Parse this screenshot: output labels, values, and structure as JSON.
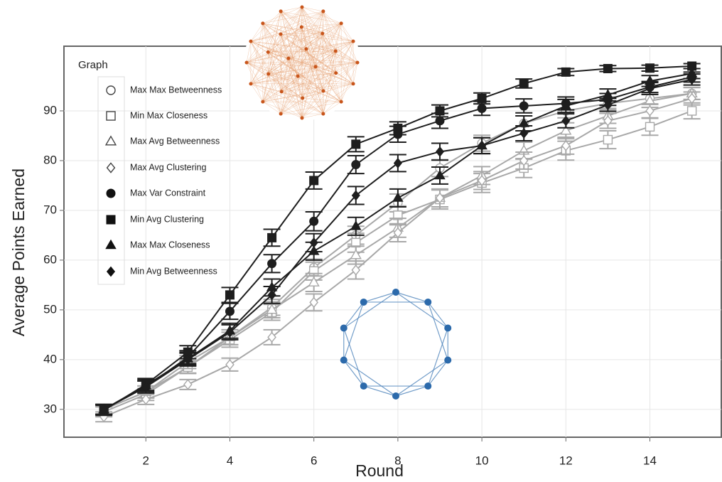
{
  "chart_data": {
    "type": "line",
    "x_label": "Round",
    "y_label": "Average Points Earned",
    "legend_title": "Graph",
    "legend_position": "upper left",
    "grid": true,
    "xlim": [
      0.05,
      15.7
    ],
    "ylim": [
      24.4,
      103
    ],
    "xticks": [
      2,
      4,
      6,
      8,
      10,
      12,
      14
    ],
    "yticks": [
      30,
      40,
      50,
      60,
      70,
      80,
      90
    ],
    "x": [
      1,
      2,
      3,
      4,
      5,
      6,
      7,
      8,
      9,
      10,
      11,
      12,
      13,
      14,
      15
    ],
    "series": [
      {
        "name": "Max Max Betweenness",
        "color": "#a8a8a8",
        "marker": "circle",
        "filled": false,
        "values": [
          30,
          33.5,
          38.5,
          44.5,
          50.5,
          58.5,
          65,
          71.5,
          78.5,
          83.5,
          87.5,
          90,
          91.5,
          92.5,
          93.5
        ],
        "errors": [
          1,
          1.2,
          1.2,
          1.5,
          1.6,
          1.7,
          1.8,
          1.8,
          1.7,
          1.6,
          1.5,
          1.4,
          1.3,
          1.2,
          1.2
        ]
      },
      {
        "name": "Min Max Closeness",
        "color": "#a8a8a8",
        "marker": "square",
        "filled": false,
        "values": [
          29.5,
          33,
          38.5,
          44,
          49.5,
          57.8,
          63.5,
          69,
          72.2,
          75.5,
          78.5,
          82,
          84.2,
          86.8,
          90
        ],
        "errors": [
          1,
          1.2,
          1.3,
          1.5,
          1.6,
          1.8,
          1.9,
          1.9,
          1.9,
          1.9,
          1.9,
          1.9,
          1.8,
          1.7,
          1.6
        ]
      },
      {
        "name": "Max Avg Betweenness",
        "color": "#a8a8a8",
        "marker": "triangle",
        "filled": false,
        "values": [
          30,
          33.5,
          39.5,
          44.5,
          50,
          55.5,
          61,
          66.5,
          72.5,
          77,
          82,
          86,
          89,
          92,
          93.5
        ],
        "errors": [
          1,
          1.2,
          1.3,
          1.5,
          1.6,
          1.8,
          1.8,
          1.9,
          1.8,
          1.8,
          1.7,
          1.6,
          1.5,
          1.3,
          1.2
        ]
      },
      {
        "name": "Max Avg Clustering",
        "color": "#a8a8a8",
        "marker": "diamond",
        "filled": false,
        "values": [
          28.5,
          32,
          35,
          39,
          44.5,
          51.5,
          58,
          65.5,
          72.5,
          76,
          80,
          83,
          88,
          90,
          92.5
        ],
        "errors": [
          1,
          1,
          1,
          1.3,
          1.5,
          1.7,
          1.8,
          1.8,
          1.8,
          1.8,
          1.7,
          1.7,
          1.5,
          1.4,
          1.3
        ]
      },
      {
        "name": "Max Var Constraint",
        "color": "#1e1e1e",
        "marker": "circle",
        "filled": true,
        "values": [
          30,
          34.5,
          40.5,
          49.7,
          59.3,
          67.8,
          79.2,
          85.3,
          88,
          90.5,
          91,
          91.5,
          92.3,
          94.8,
          96.8
        ],
        "errors": [
          1,
          1.2,
          1.3,
          1.6,
          1.8,
          1.9,
          1.8,
          1.6,
          1.5,
          1.4,
          1.4,
          1.3,
          1.2,
          1.1,
          1
        ]
      },
      {
        "name": "Min Avg Clustering",
        "color": "#1e1e1e",
        "marker": "square",
        "filled": true,
        "values": [
          29.8,
          35,
          41.5,
          53,
          64.5,
          76,
          83.3,
          86.5,
          90,
          92.5,
          95.5,
          97.8,
          98.5,
          98.6,
          99
        ],
        "errors": [
          1,
          1.2,
          1.3,
          1.5,
          1.7,
          1.7,
          1.5,
          1.3,
          1.2,
          1.1,
          0.9,
          0.7,
          0.6,
          0.6,
          0.5
        ]
      },
      {
        "name": "Max Max Closeness",
        "color": "#1e1e1e",
        "marker": "triangle",
        "filled": true,
        "values": [
          30,
          34.8,
          40.2,
          45.8,
          54.5,
          61.8,
          66.8,
          72.5,
          77,
          83,
          87.5,
          91,
          93.2,
          96,
          97.5
        ],
        "errors": [
          1,
          1.2,
          1.3,
          1.5,
          1.7,
          1.8,
          1.8,
          1.8,
          1.7,
          1.6,
          1.5,
          1.3,
          1.2,
          1.1,
          1
        ]
      },
      {
        "name": "Min Avg Betweenness",
        "color": "#1e1e1e",
        "marker": "diamond",
        "filled": true,
        "values": [
          30,
          34.5,
          40,
          45.5,
          53,
          63.5,
          73,
          79.5,
          81.8,
          83,
          85.5,
          88,
          91.2,
          94.5,
          96.3
        ],
        "errors": [
          1,
          1.2,
          1.3,
          1.5,
          1.7,
          1.8,
          1.8,
          1.7,
          1.7,
          1.6,
          1.5,
          1.4,
          1.3,
          1.2,
          1.1
        ]
      }
    ]
  }
}
